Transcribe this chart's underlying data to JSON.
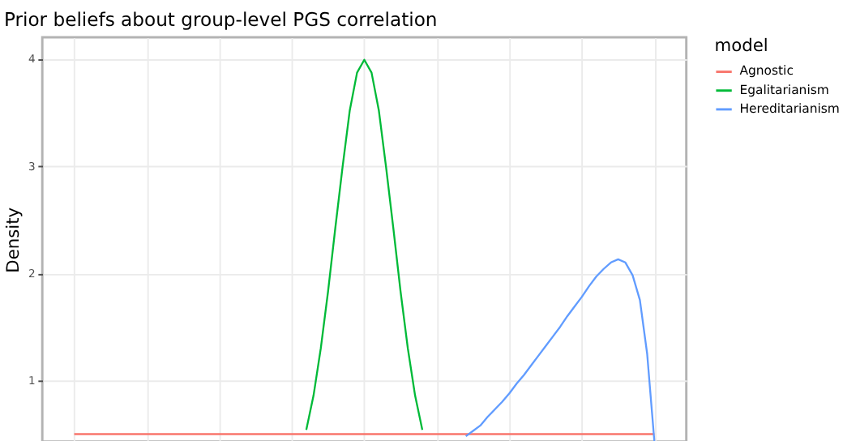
{
  "chart_data": {
    "type": "line",
    "title": "Prior beliefs about group-level PGS correlation",
    "ylabel": "Density",
    "legend_title": "model",
    "categories": [
      null,
      null,
      null,
      null,
      null,
      null,
      null,
      null,
      null,
      null,
      null,
      null,
      null,
      null,
      null,
      null,
      null,
      null,
      null,
      null,
      null,
      null,
      null,
      null,
      null,
      null,
      null,
      null,
      null,
      null,
      null,
      null,
      null,
      null,
      null,
      null,
      null,
      null,
      null,
      null,
      null,
      null,
      null,
      null,
      null,
      null,
      null,
      null,
      null,
      null,
      null,
      null,
      null,
      null,
      null,
      null,
      null,
      null,
      null,
      null,
      null,
      null,
      null,
      null,
      null,
      null,
      null,
      null,
      null,
      null,
      null,
      null,
      null,
      null,
      null,
      null,
      null,
      null,
      null,
      null,
      null
    ],
    "series": [
      {
        "name": "Agnostic",
        "color": "#f8766d",
        "values": [
          0.5,
          0.5,
          0.5,
          0.5,
          0.5,
          0.5,
          0.5,
          0.5,
          0.5,
          0.5,
          0.5,
          0.5,
          0.5,
          0.5,
          0.5,
          0.5,
          0.5,
          0.5,
          0.5,
          0.5,
          0.5,
          0.5,
          0.5,
          0.5,
          0.5,
          0.5,
          0.5,
          0.5,
          0.5,
          0.5,
          0.5,
          0.5,
          0.5,
          0.5,
          0.5,
          0.5,
          0.5,
          0.5,
          0.5,
          0.5,
          0.5,
          0.5,
          0.5,
          0.5,
          0.5,
          0.5,
          0.5,
          0.5,
          0.5,
          0.5,
          0.5,
          0.5,
          0.5,
          0.5,
          0.5,
          0.5,
          0.5,
          0.5,
          0.5,
          0.5,
          0.5,
          0.5,
          0.5,
          0.5,
          0.5,
          0.5,
          0.5,
          0.5,
          0.5,
          0.5,
          0.5,
          0.5,
          0.5,
          0.5,
          0.5,
          0.5,
          0.5,
          0.5,
          0.5,
          0.5,
          0.5
        ]
      },
      {
        "name": "Egalitarianism",
        "color": "#00ba38",
        "values": [
          null,
          null,
          null,
          null,
          null,
          null,
          null,
          null,
          null,
          null,
          null,
          null,
          null,
          null,
          null,
          null,
          null,
          null,
          null,
          null,
          null,
          null,
          null,
          null,
          null,
          null,
          null,
          null,
          null,
          null,
          null,
          null,
          0.54,
          0.86,
          1.3,
          1.83,
          2.42,
          2.99,
          3.52,
          3.87,
          3.99,
          3.87,
          3.52,
          2.99,
          2.42,
          1.83,
          1.3,
          0.86,
          0.54,
          null,
          null,
          null,
          null,
          null,
          null,
          null,
          null,
          null,
          null,
          null,
          null,
          null,
          null,
          null,
          null,
          null,
          null,
          null,
          null,
          null,
          null,
          null,
          null,
          null,
          null,
          null,
          null,
          null,
          null,
          null,
          null
        ]
      },
      {
        "name": "Hereditarianism",
        "color": "#619cff",
        "values": [
          null,
          null,
          null,
          null,
          null,
          null,
          null,
          null,
          null,
          null,
          null,
          null,
          null,
          null,
          null,
          null,
          null,
          null,
          null,
          null,
          null,
          null,
          null,
          null,
          null,
          null,
          null,
          null,
          null,
          null,
          null,
          null,
          null,
          null,
          null,
          null,
          null,
          null,
          null,
          null,
          null,
          null,
          null,
          null,
          null,
          null,
          null,
          null,
          null,
          null,
          null,
          null,
          null,
          null,
          0.48,
          0.53,
          0.58,
          0.66,
          0.73,
          0.8,
          0.88,
          0.97,
          1.05,
          1.14,
          1.23,
          1.32,
          1.41,
          1.5,
          1.6,
          1.69,
          1.78,
          1.88,
          1.97,
          2.04,
          2.1,
          2.13,
          2.1,
          1.98,
          1.75,
          1.25,
          0.43
        ]
      }
    ],
    "ylim": [
      0.43,
      4.2
    ],
    "yticks": [
      1,
      2,
      3,
      4
    ],
    "tick_labels": "y",
    "grid": true,
    "legend": "right",
    "line_style": "solid"
  }
}
